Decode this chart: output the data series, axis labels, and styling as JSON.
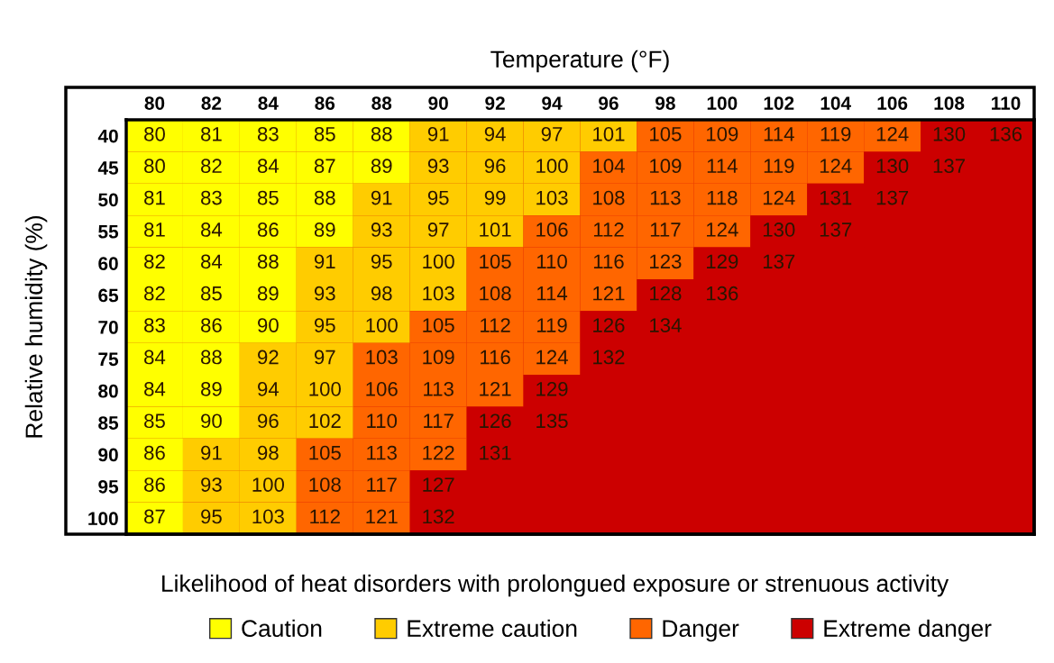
{
  "chart_data": {
    "type": "heatmap",
    "xlabel": "Temperature (°F)",
    "ylabel": "Relative humidity (%)",
    "categories": [
      "80",
      "82",
      "84",
      "86",
      "88",
      "90",
      "92",
      "94",
      "96",
      "98",
      "100",
      "102",
      "104",
      "106",
      "108",
      "110"
    ],
    "y_categories": [
      "40",
      "45",
      "50",
      "55",
      "60",
      "65",
      "70",
      "75",
      "80",
      "85",
      "90",
      "95",
      "100"
    ],
    "cells": [
      [
        80,
        81,
        83,
        85,
        88,
        91,
        94,
        97,
        101,
        105,
        109,
        114,
        119,
        124,
        130,
        136
      ],
      [
        80,
        82,
        84,
        87,
        89,
        93,
        96,
        100,
        104,
        109,
        114,
        119,
        124,
        130,
        137,
        null
      ],
      [
        81,
        83,
        85,
        88,
        91,
        95,
        99,
        103,
        108,
        113,
        118,
        124,
        131,
        137,
        null,
        null
      ],
      [
        81,
        84,
        86,
        89,
        93,
        97,
        101,
        106,
        112,
        117,
        124,
        130,
        137,
        null,
        null,
        null
      ],
      [
        82,
        84,
        88,
        91,
        95,
        100,
        105,
        110,
        116,
        123,
        129,
        137,
        null,
        null,
        null,
        null
      ],
      [
        82,
        85,
        89,
        93,
        98,
        103,
        108,
        114,
        121,
        128,
        136,
        null,
        null,
        null,
        null,
        null
      ],
      [
        83,
        86,
        90,
        95,
        100,
        105,
        112,
        119,
        126,
        134,
        null,
        null,
        null,
        null,
        null,
        null
      ],
      [
        84,
        88,
        92,
        97,
        103,
        109,
        116,
        124,
        132,
        null,
        null,
        null,
        null,
        null,
        null,
        null
      ],
      [
        84,
        89,
        94,
        100,
        106,
        113,
        121,
        129,
        null,
        null,
        null,
        null,
        null,
        null,
        null,
        null
      ],
      [
        85,
        90,
        96,
        102,
        110,
        117,
        126,
        135,
        null,
        null,
        null,
        null,
        null,
        null,
        null,
        null
      ],
      [
        86,
        91,
        98,
        105,
        113,
        122,
        131,
        null,
        null,
        null,
        null,
        null,
        null,
        null,
        null,
        null
      ],
      [
        86,
        93,
        100,
        108,
        117,
        127,
        null,
        null,
        null,
        null,
        null,
        null,
        null,
        null,
        null,
        null
      ],
      [
        87,
        95,
        103,
        112,
        121,
        132,
        null,
        null,
        null,
        null,
        null,
        null,
        null,
        null,
        null,
        null
      ]
    ],
    "colors": [
      [
        "#ffff00",
        "#ffff00",
        "#ffff00",
        "#ffff00",
        "#ffff00",
        "#ffcc00",
        "#ffcc00",
        "#ffcc00",
        "#ffcc00",
        "#ff6600",
        "#ff6600",
        "#ff6600",
        "#ff6600",
        "#ff6600",
        "#cc0000",
        "#cc0000"
      ],
      [
        "#ffff00",
        "#ffff00",
        "#ffff00",
        "#ffff00",
        "#ffff00",
        "#ffcc00",
        "#ffcc00",
        "#ffcc00",
        "#ff6600",
        "#ff6600",
        "#ff6600",
        "#ff6600",
        "#ff6600",
        "#cc0000",
        "#cc0000",
        "#cc0000"
      ],
      [
        "#ffff00",
        "#ffff00",
        "#ffff00",
        "#ffff00",
        "#ffcc00",
        "#ffcc00",
        "#ffcc00",
        "#ffcc00",
        "#ff6600",
        "#ff6600",
        "#ff6600",
        "#ff6600",
        "#cc0000",
        "#cc0000",
        "#cc0000",
        "#cc0000"
      ],
      [
        "#ffff00",
        "#ffff00",
        "#ffff00",
        "#ffff00",
        "#ffcc00",
        "#ffcc00",
        "#ffcc00",
        "#ff6600",
        "#ff6600",
        "#ff6600",
        "#ff6600",
        "#cc0000",
        "#cc0000",
        "#cc0000",
        "#cc0000",
        "#cc0000"
      ],
      [
        "#ffff00",
        "#ffff00",
        "#ffff00",
        "#ffcc00",
        "#ffcc00",
        "#ffcc00",
        "#ff6600",
        "#ff6600",
        "#ff6600",
        "#ff6600",
        "#cc0000",
        "#cc0000",
        "#cc0000",
        "#cc0000",
        "#cc0000",
        "#cc0000"
      ],
      [
        "#ffff00",
        "#ffff00",
        "#ffff00",
        "#ffcc00",
        "#ffcc00",
        "#ffcc00",
        "#ff6600",
        "#ff6600",
        "#ff6600",
        "#cc0000",
        "#cc0000",
        "#cc0000",
        "#cc0000",
        "#cc0000",
        "#cc0000",
        "#cc0000"
      ],
      [
        "#ffff00",
        "#ffff00",
        "#ffff00",
        "#ffcc00",
        "#ffcc00",
        "#ff6600",
        "#ff6600",
        "#ff6600",
        "#cc0000",
        "#cc0000",
        "#cc0000",
        "#cc0000",
        "#cc0000",
        "#cc0000",
        "#cc0000",
        "#cc0000"
      ],
      [
        "#ffff00",
        "#ffff00",
        "#ffcc00",
        "#ffcc00",
        "#ff6600",
        "#ff6600",
        "#ff6600",
        "#ff6600",
        "#cc0000",
        "#cc0000",
        "#cc0000",
        "#cc0000",
        "#cc0000",
        "#cc0000",
        "#cc0000",
        "#cc0000"
      ],
      [
        "#ffff00",
        "#ffff00",
        "#ffcc00",
        "#ffcc00",
        "#ff6600",
        "#ff6600",
        "#ff6600",
        "#cc0000",
        "#cc0000",
        "#cc0000",
        "#cc0000",
        "#cc0000",
        "#cc0000",
        "#cc0000",
        "#cc0000",
        "#cc0000"
      ],
      [
        "#ffff00",
        "#ffff00",
        "#ffcc00",
        "#ffcc00",
        "#ff6600",
        "#ff6600",
        "#cc0000",
        "#cc0000",
        "#cc0000",
        "#cc0000",
        "#cc0000",
        "#cc0000",
        "#cc0000",
        "#cc0000",
        "#cc0000",
        "#cc0000"
      ],
      [
        "#ffff00",
        "#ffcc00",
        "#ffcc00",
        "#ff6600",
        "#ff6600",
        "#ff6600",
        "#cc0000",
        "#cc0000",
        "#cc0000",
        "#cc0000",
        "#cc0000",
        "#cc0000",
        "#cc0000",
        "#cc0000",
        "#cc0000",
        "#cc0000"
      ],
      [
        "#ffff00",
        "#ffcc00",
        "#ffcc00",
        "#ff6600",
        "#ff6600",
        "#cc0000",
        "#cc0000",
        "#cc0000",
        "#cc0000",
        "#cc0000",
        "#cc0000",
        "#cc0000",
        "#cc0000",
        "#cc0000",
        "#cc0000",
        "#cc0000"
      ],
      [
        "#ffff00",
        "#ffcc00",
        "#ffcc00",
        "#ff6600",
        "#ff6600",
        "#cc0000",
        "#cc0000",
        "#cc0000",
        "#cc0000",
        "#cc0000",
        "#cc0000",
        "#cc0000",
        "#cc0000",
        "#cc0000",
        "#cc0000",
        "#cc0000"
      ]
    ],
    "series": [
      {
        "name": "Caution",
        "color": "#ffff00",
        "values": [
          null,
          null,
          null,
          null,
          null,
          null,
          null,
          null,
          null,
          null,
          null,
          null,
          null,
          null,
          null,
          null
        ]
      },
      {
        "name": "Extreme caution",
        "color": "#ffcc00",
        "values": [
          null,
          null,
          null,
          null,
          null,
          null,
          null,
          null,
          null,
          null,
          null,
          null,
          null,
          null,
          null,
          null
        ]
      },
      {
        "name": "Danger",
        "color": "#ff6600",
        "values": [
          null,
          null,
          null,
          null,
          null,
          null,
          null,
          null,
          null,
          null,
          null,
          null,
          null,
          null,
          null,
          null
        ]
      },
      {
        "name": "Extreme danger",
        "color": "#cc0000",
        "values": [
          null,
          null,
          null,
          null,
          null,
          null,
          null,
          null,
          null,
          null,
          null,
          null,
          null,
          null,
          null,
          null
        ]
      }
    ],
    "data_labels": true,
    "legend": "bottom",
    "grid": false,
    "annotations": [
      "Likelihood of heat disorders with prolongued exposure or strenuous activity"
    ]
  }
}
